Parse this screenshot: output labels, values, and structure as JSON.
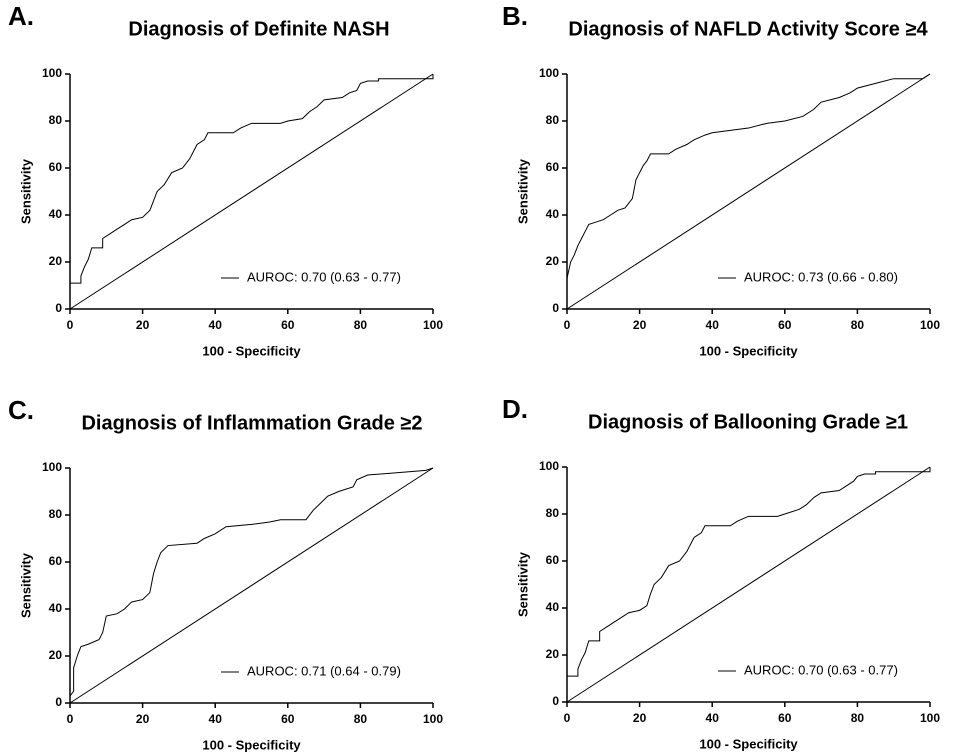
{
  "chart_data": [
    {
      "type": "line",
      "panel_label": "A.",
      "title": "Diagnosis of Definite NASH",
      "x_label": "100 - Specificity",
      "y_label": "Sensitivity",
      "xlim": [
        0,
        100
      ],
      "ylim": [
        0,
        100
      ],
      "xticks": [
        0,
        20,
        40,
        60,
        80,
        100
      ],
      "yticks": [
        0,
        20,
        40,
        60,
        80,
        100
      ],
      "legend": "lower right",
      "series": [
        {
          "name": "AUROC: 0.70 (0.63 - 0.77)",
          "color": "#000000",
          "x": [
            0,
            0,
            3,
            3,
            4,
            5,
            6,
            9,
            9,
            11,
            13,
            15,
            17,
            20,
            22,
            23,
            24,
            26,
            28,
            31,
            33,
            35,
            37,
            38,
            45,
            47,
            50,
            58,
            60,
            64,
            66,
            68,
            70,
            75,
            77,
            79,
            80,
            82,
            85,
            85,
            100,
            100
          ],
          "values": [
            0,
            11,
            11,
            14,
            18,
            21,
            26,
            26,
            30,
            32,
            34,
            36,
            38,
            39,
            42,
            46,
            50,
            53,
            58,
            60,
            64,
            70,
            72,
            75,
            75,
            77,
            79,
            79,
            80,
            81,
            84,
            86,
            89,
            90,
            92,
            93,
            96,
            97,
            97,
            98,
            98,
            100
          ]
        },
        {
          "color": "#000000",
          "x": [
            0,
            100
          ],
          "values": [
            0,
            100
          ]
        }
      ]
    },
    {
      "type": "line",
      "panel_label": "B.",
      "title": "Diagnosis of NAFLD Activity Score ≥4",
      "x_label": "100 - Specificity",
      "y_label": "Sensitivity",
      "xlim": [
        0,
        100
      ],
      "ylim": [
        0,
        100
      ],
      "xticks": [
        0,
        20,
        40,
        60,
        80,
        100
      ],
      "yticks": [
        0,
        20,
        40,
        60,
        80,
        100
      ],
      "legend": "lower right",
      "series": [
        {
          "name": "AUROC: 0.73 (0.66 - 0.80)",
          "color": "#000000",
          "x": [
            0,
            0,
            1,
            2,
            3,
            4,
            5,
            6,
            8,
            10,
            12,
            14,
            16,
            18,
            19,
            20,
            21,
            22,
            23,
            28,
            30,
            33,
            35,
            38,
            40,
            45,
            50,
            55,
            60,
            65,
            68,
            70,
            75,
            78,
            80,
            85,
            90,
            98,
            100
          ],
          "values": [
            0,
            13,
            20,
            23,
            27,
            30,
            33,
            36,
            37,
            38,
            40,
            42,
            43,
            47,
            55,
            58,
            61,
            63,
            66,
            66,
            68,
            70,
            72,
            74,
            75,
            76,
            77,
            79,
            80,
            82,
            85,
            88,
            90,
            92,
            94,
            96,
            98,
            98,
            100
          ]
        },
        {
          "color": "#000000",
          "x": [
            0,
            100
          ],
          "values": [
            0,
            100
          ]
        }
      ]
    },
    {
      "type": "line",
      "panel_label": "C.",
      "title": "Diagnosis of Inflammation Grade ≥2",
      "x_label": "100 - Specificity",
      "y_label": "Sensitivity",
      "xlim": [
        0,
        100
      ],
      "ylim": [
        0,
        100
      ],
      "xticks": [
        0,
        20,
        40,
        60,
        80,
        100
      ],
      "yticks": [
        0,
        20,
        40,
        60,
        80,
        100
      ],
      "legend": "lower right",
      "series": [
        {
          "name": "AUROC: 0.71 (0.64 - 0.79)",
          "color": "#000000",
          "x": [
            0,
            0,
            1,
            1,
            2,
            3,
            5,
            8,
            9,
            10,
            13,
            15,
            17,
            20,
            22,
            23,
            24,
            25,
            27,
            35,
            37,
            40,
            43,
            50,
            55,
            58,
            65,
            67,
            69,
            71,
            74,
            78,
            79,
            82,
            90,
            98,
            100
          ],
          "values": [
            0,
            3,
            5,
            15,
            20,
            24,
            25,
            27,
            30,
            37,
            38,
            40,
            43,
            44,
            47,
            55,
            60,
            64,
            67,
            68,
            70,
            72,
            75,
            76,
            77,
            78,
            78,
            82,
            85,
            88,
            90,
            92,
            95,
            97,
            98,
            99,
            100
          ]
        },
        {
          "color": "#000000",
          "x": [
            0,
            100
          ],
          "values": [
            0,
            100
          ]
        }
      ]
    },
    {
      "type": "line",
      "panel_label": "D.",
      "title": "Diagnosis of Ballooning Grade ≥1",
      "x_label": "100 - Specificity",
      "y_label": "Sensitivity",
      "xlim": [
        0,
        100
      ],
      "ylim": [
        0,
        100
      ],
      "xticks": [
        0,
        20,
        40,
        60,
        80,
        100
      ],
      "yticks": [
        0,
        20,
        40,
        60,
        80,
        100
      ],
      "legend": "lower right",
      "series": [
        {
          "name": "AUROC: 0.70 (0.63 - 0.77)",
          "color": "#000000",
          "x": [
            0,
            0,
            3,
            3,
            4,
            5,
            6,
            9,
            9,
            11,
            13,
            15,
            17,
            20,
            22,
            23,
            24,
            26,
            28,
            31,
            33,
            35,
            37,
            38,
            45,
            47,
            50,
            58,
            60,
            64,
            66,
            68,
            70,
            75,
            77,
            79,
            80,
            82,
            85,
            85,
            100,
            100
          ],
          "values": [
            0,
            11,
            11,
            14,
            18,
            21,
            26,
            26,
            30,
            32,
            34,
            36,
            38,
            39,
            41,
            46,
            50,
            53,
            58,
            60,
            64,
            70,
            72,
            75,
            75,
            77,
            79,
            79,
            80,
            82,
            84,
            87,
            89,
            90,
            92,
            94,
            96,
            97,
            97,
            98,
            98,
            100
          ]
        },
        {
          "color": "#000000",
          "x": [
            0,
            100
          ],
          "values": [
            0,
            100
          ]
        }
      ]
    }
  ]
}
